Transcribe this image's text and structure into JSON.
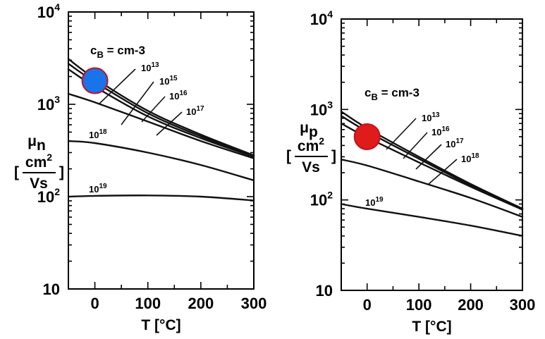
{
  "chart_data": [
    {
      "type": "line",
      "panel": "left",
      "ylabel_symbol": "μ",
      "ylabel_subscript": "n",
      "unit_num": "cm",
      "unit_num_exp": "2",
      "unit_den": "Vs",
      "xlabel": "T [°C]",
      "y_log_scale": true,
      "xlim": [
        -50,
        300
      ],
      "ylim": [
        10,
        10000
      ],
      "x_ticks": [
        "0",
        "100",
        "200",
        "300"
      ],
      "y_ticks": [
        {
          "base": "10",
          "exp": "4",
          "value": 10000
        },
        {
          "base": "10",
          "exp": "3",
          "value": 1000
        },
        {
          "base": "10",
          "exp": "2",
          "value": 100
        },
        {
          "base": "10",
          "exp": "",
          "value": 10
        }
      ],
      "legend_title": {
        "sym": "c",
        "sub": "B",
        "rest": " = cm-3"
      },
      "series": [
        {
          "name_base": "10",
          "name_exp": "13",
          "x": [
            -50,
            0,
            100,
            200,
            300
          ],
          "y": [
            3100,
            1900,
            850,
            470,
            280
          ]
        },
        {
          "name_base": "10",
          "name_exp": "15",
          "x": [
            -50,
            0,
            100,
            200,
            300
          ],
          "y": [
            2750,
            1750,
            800,
            450,
            275
          ]
        },
        {
          "name_base": "10",
          "name_exp": "16",
          "x": [
            -50,
            0,
            100,
            200,
            300
          ],
          "y": [
            2400,
            1550,
            740,
            430,
            270
          ]
        },
        {
          "name_base": "10",
          "name_exp": "17",
          "x": [
            -50,
            0,
            100,
            200,
            300
          ],
          "y": [
            1300,
            1050,
            650,
            400,
            260
          ]
        },
        {
          "name_base": "10",
          "name_exp": "18",
          "x": [
            -50,
            0,
            100,
            200,
            300
          ],
          "y": [
            400,
            380,
            300,
            220,
            150
          ]
        },
        {
          "name_base": "10",
          "name_exp": "19",
          "x": [
            -50,
            0,
            100,
            200,
            300
          ],
          "y": [
            100,
            102,
            103,
            100,
            91
          ]
        }
      ],
      "marker": {
        "x": 0,
        "y": 1800,
        "color": "#1a73e8"
      }
    },
    {
      "type": "line",
      "panel": "right",
      "ylabel_symbol": "μ",
      "ylabel_subscript": "p",
      "unit_num": "cm",
      "unit_num_exp": "2",
      "unit_den": "Vs",
      "xlabel": "T [°C]",
      "y_log_scale": true,
      "xlim": [
        -50,
        300
      ],
      "ylim": [
        10,
        10000
      ],
      "x_ticks": [
        "0",
        "100",
        "200",
        "300"
      ],
      "y_ticks": [
        {
          "base": "10",
          "exp": "4",
          "value": 10000
        },
        {
          "base": "10",
          "exp": "3",
          "value": 1000
        },
        {
          "base": "10",
          "exp": "2",
          "value": 100
        },
        {
          "base": "10",
          "exp": "",
          "value": 10
        }
      ],
      "legend_title": {
        "sym": "c",
        "sub": "B",
        "rest": " =   cm-3"
      },
      "series": [
        {
          "name_base": "10",
          "name_exp": "13",
          "x": [
            -50,
            0,
            100,
            200,
            300
          ],
          "y": [
            950,
            620,
            300,
            150,
            80
          ]
        },
        {
          "name_base": "10",
          "name_exp": "16",
          "x": [
            -50,
            0,
            100,
            200,
            300
          ],
          "y": [
            850,
            570,
            285,
            145,
            79
          ]
        },
        {
          "name_base": "10",
          "name_exp": "17",
          "x": [
            -50,
            0,
            100,
            200,
            300
          ],
          "y": [
            700,
            490,
            260,
            140,
            78
          ]
        },
        {
          "name_base": "10",
          "name_exp": "18",
          "x": [
            -50,
            0,
            100,
            200,
            300
          ],
          "y": [
            280,
            240,
            160,
            105,
            65
          ]
        },
        {
          "name_base": "10",
          "name_exp": "19",
          "x": [
            -50,
            0,
            100,
            200,
            300
          ],
          "y": [
            90,
            80,
            65,
            52,
            40
          ]
        }
      ],
      "marker": {
        "x": 0,
        "y": 500,
        "color": "#e01b1b"
      }
    }
  ]
}
